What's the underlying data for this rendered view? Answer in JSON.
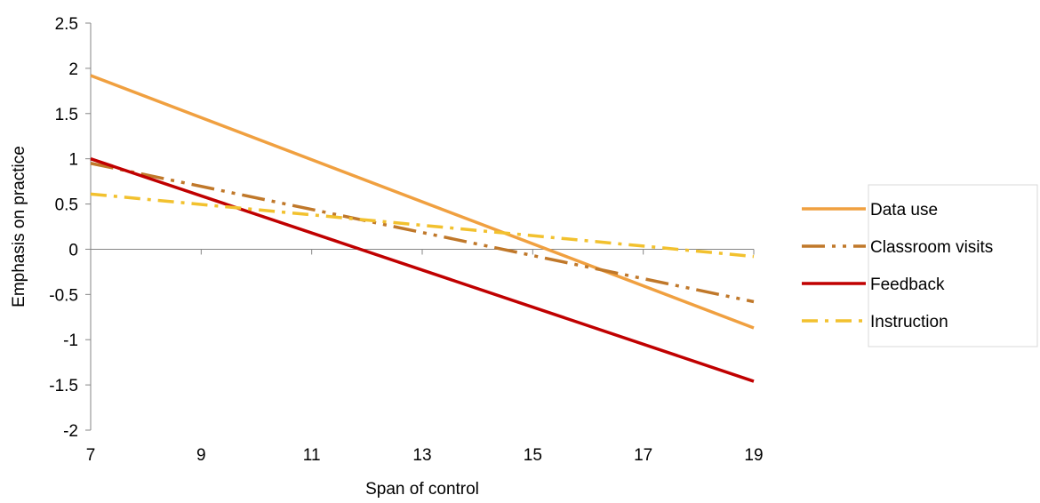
{
  "chart_data": {
    "type": "line",
    "title": "",
    "xlabel": "Span of control",
    "ylabel": "Emphasis on practice",
    "xlim": [
      7,
      19
    ],
    "ylim": [
      -2,
      2.5
    ],
    "x_ticks": [
      7,
      9,
      11,
      13,
      15,
      17,
      19
    ],
    "x_tick_labels": [
      "7",
      "9",
      "11",
      "13",
      "15",
      "17",
      "19"
    ],
    "y_ticks": [
      -2,
      -1.5,
      -1,
      -0.5,
      0,
      0.5,
      1,
      1.5,
      2,
      2.5
    ],
    "y_tick_labels": [
      "-2",
      "-1.5",
      "-1",
      "-0.5",
      "0",
      "0.5",
      "1",
      "1.5",
      "2",
      "2.5"
    ],
    "grid": false,
    "legend_position": "right",
    "x": [
      7,
      19
    ],
    "series": [
      {
        "name": "Data use",
        "values": [
          1.92,
          -0.87
        ],
        "color": "#F0A040",
        "style": "solid"
      },
      {
        "name": "Classroom visits",
        "values": [
          0.95,
          -0.58
        ],
        "color": "#C0782A",
        "style": "dash-dot-dot"
      },
      {
        "name": "Feedback",
        "values": [
          1.0,
          -1.46
        ],
        "color": "#C00000",
        "style": "solid"
      },
      {
        "name": "Instruction",
        "values": [
          0.61,
          -0.08
        ],
        "color": "#F2C12E",
        "style": "dash-dot"
      }
    ]
  }
}
